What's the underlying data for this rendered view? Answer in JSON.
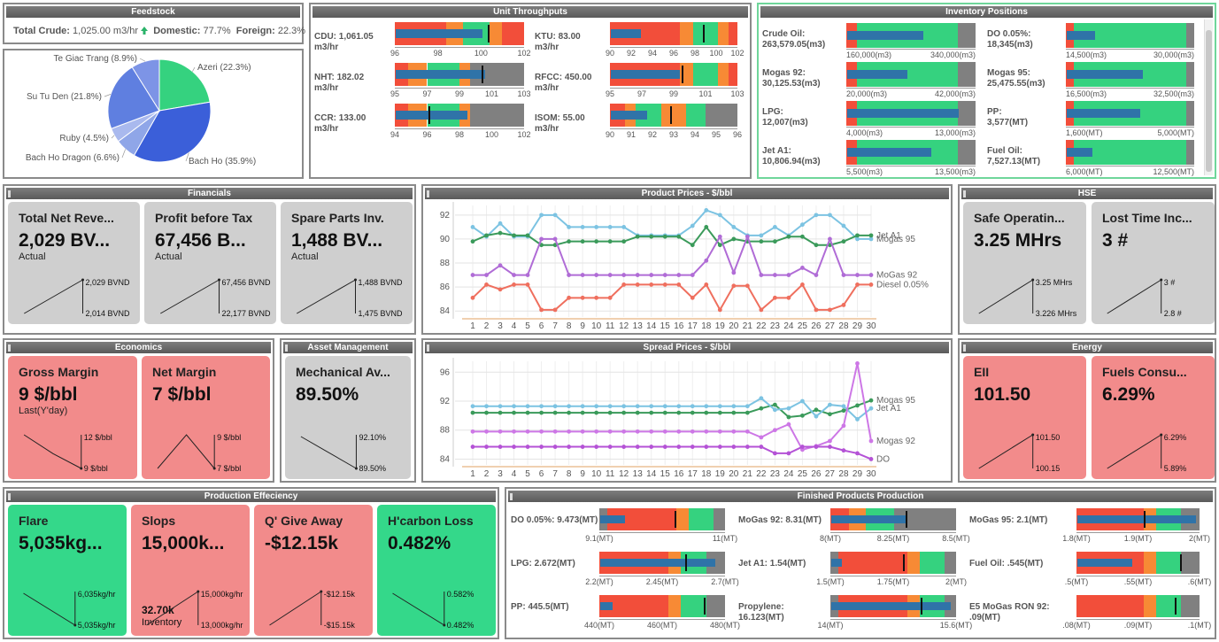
{
  "feedstock": {
    "title": "Feedstock",
    "total_label": "Total Crude:",
    "total_value": "1,025.00 m3/hr",
    "domestic_label": "Domestic:",
    "domestic_value": "77.7%",
    "foreign_label": "Foreign:",
    "foreign_value": "22.3%",
    "trend_icon": "arrow-up-icon"
  },
  "pie": {
    "slices": [
      {
        "label": "Azeri (22.3%)",
        "value": 22.3,
        "color": "#35d27f"
      },
      {
        "label": "Bach Ho (35.9%)",
        "value": 35.9,
        "color": "#3b5fd9"
      },
      {
        "label": "Bach Ho Dragon (6.6%)",
        "value": 6.6,
        "color": "#8fa6e8"
      },
      {
        "label": "Ruby (4.5%)",
        "value": 4.5,
        "color": "#a9b9ee"
      },
      {
        "label": "Su Tu Den (21.8%)",
        "value": 21.8,
        "color": "#5f7fe0"
      },
      {
        "label": "Te Giac Trang (8.9%)",
        "value": 8.9,
        "color": "#7d94e6"
      }
    ]
  },
  "unit_throughputs": {
    "title": "Unit Throughputs",
    "items": [
      {
        "name": "CDU:",
        "value": "1,061.05",
        "unit": "m3/hr",
        "ticks": [
          "96",
          "98",
          "100",
          "102"
        ],
        "bar": 0.68,
        "target": 0.72
      },
      {
        "name": "KTU:",
        "value": "83.00",
        "unit": "m3/hr",
        "ticks": [
          "90",
          "92",
          "94",
          "96",
          "98",
          "100",
          "102"
        ],
        "bar": 0.24,
        "target": 0.73
      },
      {
        "name": "NHT:",
        "value": "182.02",
        "unit": "m3/hr",
        "ticks": [
          "95",
          "97",
          "99",
          "101",
          "103"
        ],
        "bar": 0.7,
        "target": 0.67
      },
      {
        "name": "RFCC:",
        "value": "450.00",
        "unit": "m3/hr",
        "ticks": [
          "95",
          "97",
          "99",
          "101",
          "103"
        ],
        "bar": 0.55,
        "target": 0.56
      },
      {
        "name": "CCR:",
        "value": "133.00",
        "unit": "m3/hr",
        "ticks": [
          "94",
          "96",
          "98",
          "100",
          "102"
        ],
        "bar": 0.56,
        "target": 0.26
      },
      {
        "name": "ISOM:",
        "value": "55.00",
        "unit": "m3/hr",
        "ticks": [
          "90",
          "91",
          "92",
          "93",
          "94",
          "95",
          "96"
        ],
        "bar": 0.29,
        "target": 0.47
      }
    ]
  },
  "inventory": {
    "title": "Inventory Positions",
    "items": [
      {
        "name": "Crude Oil:",
        "value": "263,579.05(m3)",
        "min": "160,000(m3)",
        "max": "340,000(m3)",
        "bar": 0.6
      },
      {
        "name": "DO 0.05%:",
        "value": "18,345(m3)",
        "min": "14,500(m3)",
        "max": "30,000(m3)",
        "bar": 0.22
      },
      {
        "name": "Mogas 92:",
        "value": "30,125.53(m3)",
        "min": "20,000(m3)",
        "max": "42,000(m3)",
        "bar": 0.47
      },
      {
        "name": "Mogas 95:",
        "value": "25,475.55(m3)",
        "min": "16,500(m3)",
        "max": "32,500(m3)",
        "bar": 0.6
      },
      {
        "name": "LPG:",
        "value": "12,007(m3)",
        "min": "4,000(m3)",
        "max": "13,000(m3)",
        "bar": 0.88
      },
      {
        "name": "PP:",
        "value": "3,577(MT)",
        "min": "1,600(MT)",
        "max": "5,000(MT)",
        "bar": 0.58
      },
      {
        "name": "Jet A1:",
        "value": "10,806.94(m3)",
        "min": "5,500(m3)",
        "max": "13,500(m3)",
        "bar": 0.66
      },
      {
        "name": "Fuel Oil:",
        "value": "7,527.13(MT)",
        "min": "6,000(MT)",
        "max": "12,500(MT)",
        "bar": 0.2
      }
    ]
  },
  "financials": {
    "title": "Financials",
    "cards": [
      {
        "title": "Total Net Reve...",
        "value": "2,029 BV...",
        "sub": "Actual",
        "hi": "2,029 BVND",
        "lo": "2,014 BVND"
      },
      {
        "title": "Profit before Tax",
        "value": "67,456 B...",
        "sub": "Actual",
        "hi": "67,456 BVND",
        "lo": "22,177 BVND"
      },
      {
        "title": "Spare Parts Inv.",
        "value": "1,488 BV...",
        "sub": "Actual",
        "hi": "1,488 BVND",
        "lo": "1,475 BVND"
      }
    ]
  },
  "chart_data": [
    {
      "type": "line",
      "title": "Product Prices - $/bbl",
      "x": [
        1,
        2,
        3,
        4,
        5,
        6,
        7,
        8,
        9,
        10,
        11,
        12,
        13,
        14,
        15,
        16,
        17,
        18,
        19,
        20,
        21,
        22,
        23,
        24,
        25,
        26,
        27,
        28,
        29,
        30
      ],
      "ylim": [
        83.5,
        92.8
      ],
      "yticks": [
        84,
        86,
        88,
        90,
        92
      ],
      "series": [
        {
          "name": "Mogas 95",
          "color": "#7cc3e2",
          "values": [
            91,
            90.2,
            91.3,
            90.2,
            90.2,
            92,
            92,
            91,
            91,
            91,
            91,
            91,
            90.3,
            90.3,
            90.3,
            90.3,
            91.1,
            92.4,
            92,
            91,
            90.3,
            90.3,
            91,
            90.3,
            91.2,
            92,
            92,
            91.1,
            90,
            90
          ]
        },
        {
          "name": "Jet A1",
          "color": "#3a9a5a",
          "values": [
            89.8,
            90.3,
            90.5,
            90.3,
            90.3,
            89.5,
            89.5,
            89.8,
            89.8,
            89.8,
            89.8,
            89.8,
            90.2,
            90.2,
            90.2,
            90.2,
            89.5,
            91,
            89.5,
            90,
            89.8,
            89.8,
            89.8,
            90.2,
            90.2,
            89.5,
            89.5,
            89.8,
            90.3,
            90.3
          ]
        },
        {
          "name": "MoGas 92",
          "color": "#b06cd6",
          "values": [
            87,
            87,
            87.8,
            87,
            87,
            90,
            90,
            87,
            87,
            87,
            87,
            87,
            87,
            87,
            87,
            87,
            87,
            88.2,
            90.2,
            87.2,
            90.2,
            87,
            87,
            87,
            87.6,
            87,
            90,
            87,
            87,
            87
          ]
        },
        {
          "name": "Diesel 0.05%",
          "color": "#ef6f5e",
          "values": [
            85.1,
            86.2,
            85.8,
            86.2,
            86.2,
            84.1,
            84.1,
            85.1,
            85.1,
            85.1,
            85.1,
            86.2,
            86.2,
            86.2,
            86.2,
            86.2,
            85.1,
            86.2,
            84.1,
            86.1,
            86.1,
            84.1,
            85.1,
            85.1,
            86.2,
            84.1,
            84.1,
            84.5,
            86.2,
            86.2
          ]
        }
      ]
    },
    {
      "type": "line",
      "title": "Spread Prices - $/bbl",
      "x": [
        1,
        2,
        3,
        4,
        5,
        6,
        7,
        8,
        9,
        10,
        11,
        12,
        13,
        14,
        15,
        16,
        17,
        18,
        19,
        20,
        21,
        22,
        23,
        24,
        25,
        26,
        27,
        28,
        29,
        30
      ],
      "ylim": [
        83.2,
        97.5
      ],
      "yticks": [
        84,
        88,
        92,
        96
      ],
      "series": [
        {
          "name": "Mogas 95",
          "color": "#3a9a5a",
          "values": [
            90.4,
            90.4,
            90.4,
            90.4,
            90.4,
            90.4,
            90.4,
            90.4,
            90.4,
            90.4,
            90.4,
            90.4,
            90.4,
            90.4,
            90.4,
            90.4,
            90.4,
            90.4,
            90.4,
            90.4,
            90.4,
            91,
            91.5,
            89.8,
            90,
            90.8,
            90.2,
            90.7,
            91.4,
            92.1
          ]
        },
        {
          "name": "Jet A1",
          "color": "#7cc3e2",
          "values": [
            91.3,
            91.3,
            91.3,
            91.3,
            91.3,
            91.3,
            91.3,
            91.3,
            91.3,
            91.3,
            91.3,
            91.3,
            91.3,
            91.3,
            91.3,
            91.3,
            91.3,
            91.3,
            91.3,
            91.3,
            91.3,
            92.4,
            90.8,
            91,
            92,
            89.9,
            91.5,
            91.3,
            89.5,
            91
          ]
        },
        {
          "name": "Mogas 92",
          "color": "#cd77e6",
          "values": [
            87.8,
            87.8,
            87.8,
            87.8,
            87.8,
            87.8,
            87.8,
            87.8,
            87.8,
            87.8,
            87.8,
            87.8,
            87.8,
            87.8,
            87.8,
            87.8,
            87.8,
            87.8,
            87.8,
            87.8,
            87.8,
            87,
            88,
            88.8,
            85.3,
            85.8,
            86.5,
            88.6,
            97.2,
            86.5
          ]
        },
        {
          "name": "DO",
          "color": "#b452d6",
          "values": [
            85.7,
            85.7,
            85.7,
            85.7,
            85.7,
            85.7,
            85.7,
            85.7,
            85.7,
            85.7,
            85.7,
            85.7,
            85.7,
            85.7,
            85.7,
            85.7,
            85.7,
            85.7,
            85.7,
            85.7,
            85.7,
            85.7,
            84.8,
            84.8,
            85.7,
            85.7,
            85.7,
            85.2,
            84.8,
            84
          ]
        }
      ]
    }
  ],
  "product_prices": {
    "title": "Product Prices - $/bbl"
  },
  "spread_prices": {
    "title": "Spread Prices - $/bbl"
  },
  "hse": {
    "title": "HSE",
    "cards": [
      {
        "title": "Safe Operatin...",
        "value": "3.25 MHrs",
        "hi": "3.25 MHrs",
        "lo": "3.226 MHrs"
      },
      {
        "title": "Lost Time Inc...",
        "value": "3 #",
        "hi": "3 #",
        "lo": "2.8 #"
      }
    ]
  },
  "economics": {
    "title": "Economics",
    "cards": [
      {
        "title": "Gross Margin",
        "value": "9 $/bbl",
        "sub": "Last(Y'day)",
        "hi": "12 $/bbl",
        "lo": "9 $/bbl"
      },
      {
        "title": "Net Margin",
        "value": "7 $/bbl",
        "sub": "",
        "hi": "9 $/bbl",
        "lo": "7 $/bbl"
      }
    ]
  },
  "asset": {
    "title": "Asset Management",
    "card": {
      "title": "Mechanical Av...",
      "value": "89.50%",
      "hi": "92.10%",
      "lo": "89.50%"
    }
  },
  "energy": {
    "title": "Energy",
    "cards": [
      {
        "title": "EII",
        "value": "101.50",
        "hi": "101.50",
        "lo": "100.15"
      },
      {
        "title": "Fuels Consu...",
        "value": "6.29%",
        "hi": "6.29%",
        "lo": "5.89%"
      }
    ]
  },
  "production": {
    "title": "Production Effeciency",
    "cards": [
      {
        "title": "Flare",
        "value": "5,035kg...",
        "sub1": "",
        "sub2": "",
        "hi": "6,035kg/hr",
        "lo": "5,035kg/hr"
      },
      {
        "title": "Slops",
        "value": "15,000k...",
        "sub1": "32.70k",
        "sub2": "Inventory",
        "hi": "15,000kg/hr",
        "lo": "13,000kg/hr"
      },
      {
        "title": "Q' Give Away",
        "value": "-$12.15k",
        "sub1": "",
        "sub2": "",
        "hi": "-$12.15k",
        "lo": "-$15.15k"
      },
      {
        "title": "H'carbon Loss",
        "value": "0.482%",
        "sub1": "",
        "sub2": "",
        "hi": "0.582%",
        "lo": "0.482%"
      }
    ]
  },
  "finished": {
    "title": "Finished Products Production",
    "items": [
      {
        "name": "DO 0.05%:",
        "value": "9.473(MT)",
        "ticks": [
          "9.1(MT)",
          "11(MT)"
        ],
        "bar": 0.2,
        "target": 0.6
      },
      {
        "name": "MoGas 92:",
        "value": "8.31(MT)",
        "ticks": [
          "8(MT)",
          "8.25(MT)",
          "8.5(MT)"
        ],
        "bar": 0.6,
        "target": 0.6
      },
      {
        "name": "MoGas 95:",
        "value": "2.1(MT)",
        "ticks": [
          "1.8(MT)",
          "1.9(MT)",
          "2(MT)"
        ],
        "bar": 0.98,
        "target": 0.55
      },
      {
        "name": "LPG:",
        "value": "2.672(MT)",
        "ticks": [
          "2.2(MT)",
          "2.45(MT)",
          "2.7(MT)"
        ],
        "bar": 0.93,
        "target": 0.68
      },
      {
        "name": "Jet A1:",
        "value": "1.54(MT)",
        "ticks": [
          "1.5(MT)",
          "1.75(MT)",
          "2(MT)"
        ],
        "bar": 0.08,
        "target": 0.58
      },
      {
        "name": "Fuel Oil:",
        "value": ".545(MT)",
        "ticks": [
          ".5(MT)",
          ".55(MT)",
          ".6(MT)"
        ],
        "bar": 0.45,
        "target": 0.84
      },
      {
        "name": "PP:",
        "value": "445.5(MT)",
        "ticks": [
          "440(MT)",
          "460(MT)",
          "480(MT)"
        ],
        "bar": 0.1,
        "target": 0.83
      },
      {
        "name": "Propylene:",
        "value": "16.123(MT)",
        "ticks": [
          "14(MT)",
          "15.6(MT)"
        ],
        "bar": 0.97,
        "target": 0.72
      },
      {
        "name": "E5 MoGas RON 92:",
        "value": ".09(MT)",
        "ticks": [
          ".08(MT)",
          ".09(MT)",
          ".1(MT)"
        ],
        "bar": 0.0,
        "target": 0.8
      }
    ]
  }
}
